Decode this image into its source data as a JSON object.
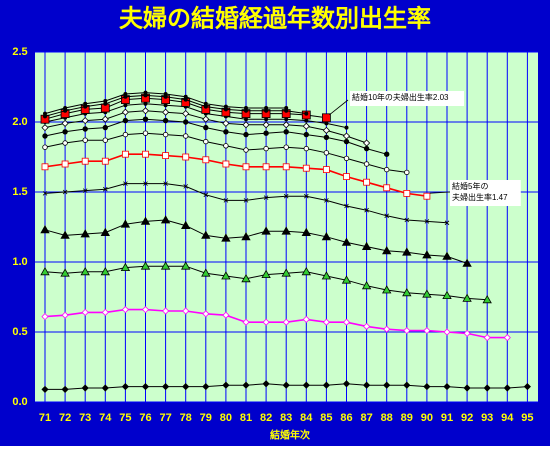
{
  "chart_data": {
    "type": "line",
    "title": "夫婦の結婚経過年数別出生率",
    "x_label": "結婚年次",
    "categories": [
      "71",
      "72",
      "73",
      "74",
      "75",
      "76",
      "77",
      "78",
      "79",
      "80",
      "81",
      "82",
      "83",
      "84",
      "85",
      "86",
      "87",
      "88",
      "89",
      "90",
      "91",
      "92",
      "93",
      "94",
      "95"
    ],
    "ylim": [
      0,
      2.5
    ],
    "yticks": [
      {
        "value": 0,
        "label": "0.0"
      },
      0.5,
      {
        "value": 1,
        "label": "1.0"
      },
      1.5,
      {
        "value": 2,
        "label": "2.0"
      },
      2.5
    ],
    "grid": true,
    "background": "#0000cc",
    "plot_background": "#ccffcc",
    "grid_color": "#0000ff",
    "series": [
      {
        "color": "#000000",
        "marker": "diamond",
        "marker_fill": "#000000",
        "values": [
          0.09,
          0.09,
          0.1,
          0.1,
          0.11,
          0.11,
          0.11,
          0.11,
          0.11,
          0.12,
          0.12,
          0.13,
          0.12,
          0.12,
          0.12,
          0.13,
          0.12,
          0.12,
          0.12,
          0.11,
          0.11,
          0.1,
          0.1,
          0.1,
          0.11
        ]
      },
      {
        "color": "#ff00ff",
        "marker": "diamond",
        "marker_fill": "#ffffff",
        "values": [
          0.61,
          0.62,
          0.64,
          0.64,
          0.66,
          0.66,
          0.65,
          0.65,
          0.63,
          0.62,
          0.57,
          0.57,
          0.57,
          0.59,
          0.57,
          0.57,
          0.54,
          0.52,
          0.51,
          0.51,
          0.5,
          0.49,
          0.46,
          0.46,
          null
        ]
      },
      {
        "color": "#000000",
        "marker": "triangle",
        "marker_fill": "#33cc33",
        "values": [
          0.93,
          0.92,
          0.93,
          0.93,
          0.96,
          0.97,
          0.97,
          0.97,
          0.92,
          0.9,
          0.88,
          0.91,
          0.92,
          0.93,
          0.9,
          0.87,
          0.83,
          0.8,
          0.78,
          0.77,
          0.76,
          0.74,
          0.73,
          null,
          null
        ]
      },
      {
        "color": "#000000",
        "marker": "triangle",
        "marker_fill": "#000000",
        "values": [
          1.23,
          1.19,
          1.2,
          1.21,
          1.27,
          1.29,
          1.3,
          1.26,
          1.19,
          1.17,
          1.18,
          1.22,
          1.22,
          1.21,
          1.18,
          1.14,
          1.11,
          1.08,
          1.07,
          1.05,
          1.04,
          0.99,
          null,
          null,
          null
        ]
      },
      {
        "color": "#000000",
        "marker": "x",
        "marker_fill": "#000000",
        "values": [
          1.49,
          1.5,
          1.51,
          1.52,
          1.56,
          1.56,
          1.56,
          1.54,
          1.48,
          1.44,
          1.44,
          1.46,
          1.47,
          1.47,
          1.44,
          1.4,
          1.37,
          1.33,
          1.3,
          1.29,
          1.28,
          null,
          null,
          null,
          null
        ]
      },
      {
        "color": "#ff0000",
        "marker": "square",
        "marker_fill": "#ffffff",
        "values": [
          1.68,
          1.7,
          1.72,
          1.72,
          1.77,
          1.77,
          1.76,
          1.75,
          1.73,
          1.7,
          1.68,
          1.68,
          1.68,
          1.67,
          1.66,
          1.61,
          1.57,
          1.53,
          1.49,
          1.47,
          null,
          null,
          null,
          null,
          null
        ]
      },
      {
        "color": "#000000",
        "marker": "circle",
        "marker_fill": "#ffffff",
        "values": [
          1.82,
          1.85,
          1.87,
          1.87,
          1.91,
          1.92,
          1.91,
          1.9,
          1.86,
          1.83,
          1.8,
          1.81,
          1.82,
          1.81,
          1.78,
          1.74,
          1.7,
          1.66,
          1.64,
          null,
          null,
          null,
          null,
          null,
          null
        ]
      },
      {
        "color": "#000000",
        "marker": "circle",
        "marker_fill": "#000000",
        "values": [
          1.9,
          1.93,
          1.95,
          1.96,
          2.01,
          2.02,
          2.01,
          2.0,
          1.96,
          1.93,
          1.91,
          1.92,
          1.93,
          1.91,
          1.89,
          1.86,
          1.81,
          1.77,
          null,
          null,
          null,
          null,
          null,
          null,
          null
        ]
      },
      {
        "color": "#000000",
        "marker": "diamond",
        "marker_fill": "#ffffff",
        "values": [
          1.96,
          1.99,
          2.01,
          2.02,
          2.07,
          2.08,
          2.07,
          2.06,
          2.02,
          1.99,
          1.98,
          1.98,
          1.98,
          1.97,
          1.94,
          1.9,
          1.85,
          null,
          null,
          null,
          null,
          null,
          null,
          null,
          null
        ]
      },
      {
        "color": "#000000",
        "marker": "dot",
        "marker_fill": "#000000",
        "values": [
          2.0,
          2.03,
          2.06,
          2.07,
          2.12,
          2.13,
          2.12,
          2.11,
          2.06,
          2.04,
          2.02,
          2.02,
          2.02,
          2.01,
          1.99,
          1.96,
          null,
          null,
          null,
          null,
          null,
          null,
          null,
          null,
          null
        ]
      },
      {
        "color": "#000000",
        "marker": "square",
        "marker_fill": "#ff0000",
        "values": [
          2.02,
          2.06,
          2.09,
          2.1,
          2.16,
          2.17,
          2.16,
          2.14,
          2.09,
          2.07,
          2.06,
          2.06,
          2.06,
          2.05,
          2.03,
          null,
          null,
          null,
          null,
          null,
          null,
          null,
          null,
          null,
          null
        ]
      },
      {
        "color": "#000000",
        "marker": "dot",
        "marker_fill": "#000000",
        "values": [
          2.04,
          2.08,
          2.11,
          2.13,
          2.18,
          2.19,
          2.18,
          2.16,
          2.11,
          2.09,
          2.08,
          2.08,
          2.08,
          2.06,
          null,
          null,
          null,
          null,
          null,
          null,
          null,
          null,
          null,
          null,
          null
        ]
      },
      {
        "color": "#000000",
        "marker": "dot",
        "marker_fill": "#000000",
        "values": [
          2.06,
          2.1,
          2.13,
          2.15,
          2.2,
          2.21,
          2.2,
          2.18,
          2.13,
          2.11,
          2.1,
          2.1,
          2.1,
          null,
          null,
          null,
          null,
          null,
          null,
          null,
          null,
          null,
          null,
          null,
          null
        ]
      }
    ],
    "annotations": [
      {
        "lines": [
          "結婚10年の夫婦出生率2.03"
        ],
        "series": 10,
        "index": 14
      },
      {
        "lines": [
          "結婚5年の",
          "夫婦出生率1.47"
        ],
        "series": 5,
        "index": 19
      }
    ]
  }
}
